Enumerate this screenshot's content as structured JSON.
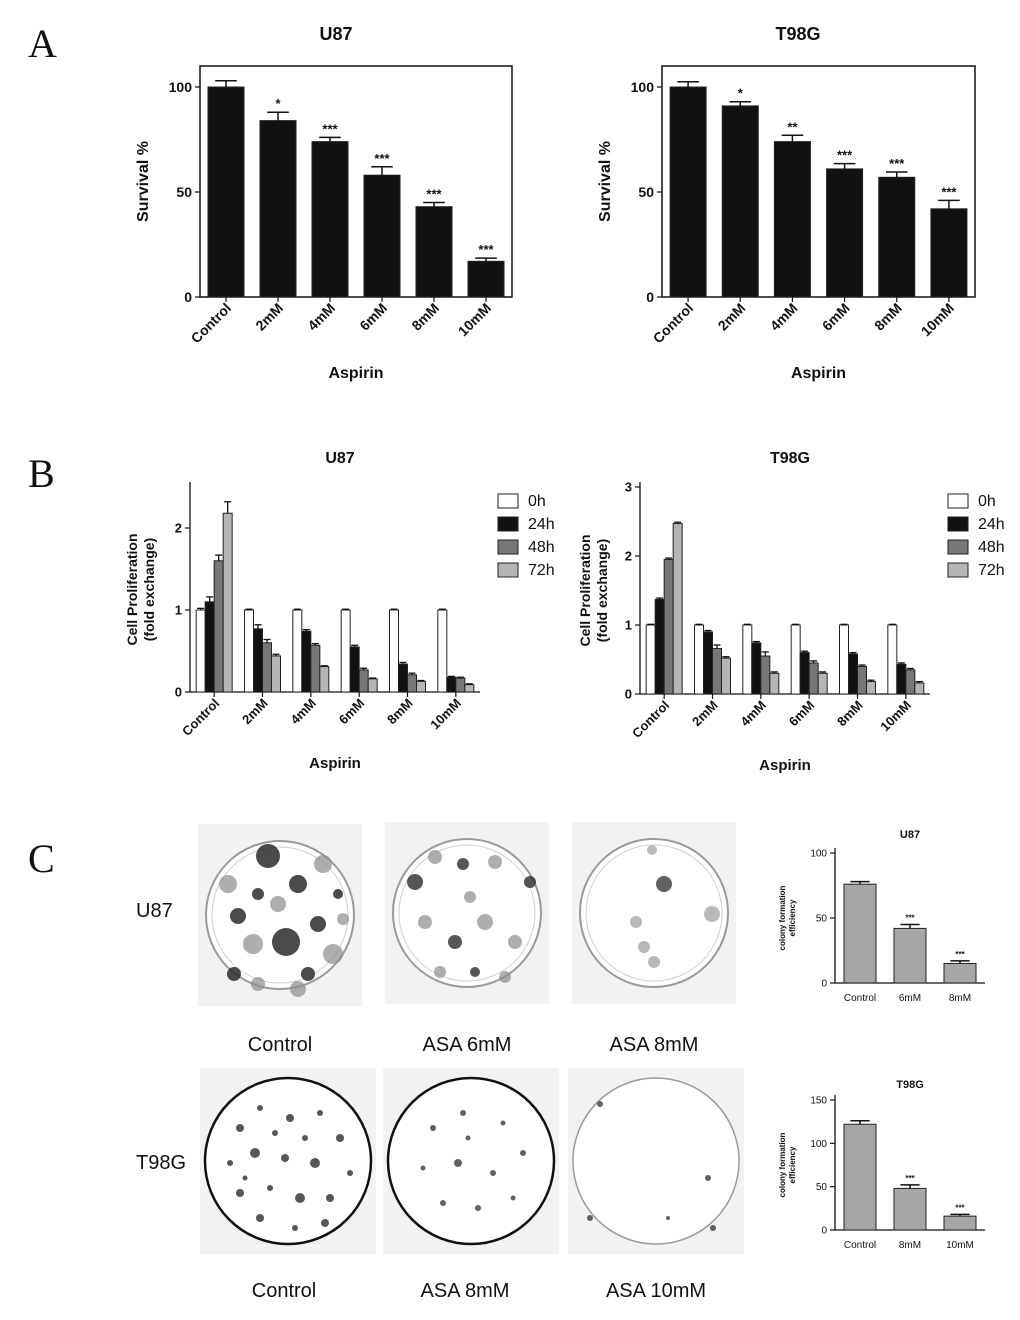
{
  "panels": {
    "a": "A",
    "b": "B",
    "c": "C"
  },
  "colors": {
    "bar_dark": "#111111",
    "bar_white": "#ffffff",
    "bar_mid": "#777777",
    "bar_light": "#b5b5b5",
    "bar_colony": "#a6a6a6"
  },
  "chart_data": [
    {
      "id": "A-U87",
      "type": "bar",
      "title": "U87",
      "xlabel": "Aspirin",
      "ylabel": "Survival %",
      "categories": [
        "Control",
        "2mM",
        "4mM",
        "6mM",
        "8mM",
        "10mM"
      ],
      "values": [
        100,
        84,
        74,
        58,
        43,
        17
      ],
      "errors": [
        3,
        4,
        2,
        4,
        2,
        1.5
      ],
      "significance": [
        "",
        "*",
        "***",
        "***",
        "***",
        "***"
      ],
      "ylim": [
        0,
        110
      ],
      "yticks": [
        0,
        50,
        100
      ]
    },
    {
      "id": "A-T98G",
      "type": "bar",
      "title": "T98G",
      "xlabel": "Aspirin",
      "ylabel": "Survival %",
      "categories": [
        "Control",
        "2mM",
        "4mM",
        "6mM",
        "8mM",
        "10mM"
      ],
      "values": [
        100,
        91,
        74,
        61,
        57,
        42
      ],
      "errors": [
        2.5,
        2,
        3,
        2.5,
        2.5,
        4
      ],
      "significance": [
        "",
        "*",
        "**",
        "***",
        "***",
        "***"
      ],
      "ylim": [
        0,
        110
      ],
      "yticks": [
        0,
        50,
        100
      ]
    },
    {
      "id": "B-U87",
      "type": "bar",
      "title": "U87",
      "xlabel": "Aspirin",
      "ylabel": "Cell Proliferation (fold exchange)",
      "categories": [
        "Control",
        "2mM",
        "4mM",
        "6mM",
        "8mM",
        "10mM"
      ],
      "series": [
        {
          "name": "0h",
          "values": [
            1.0,
            1.0,
            1.0,
            1.0,
            1.0,
            1.0
          ],
          "errors": [
            0.02,
            0.01,
            0.01,
            0.01,
            0.01,
            0.01
          ]
        },
        {
          "name": "24h",
          "values": [
            1.1,
            0.77,
            0.74,
            0.55,
            0.34,
            0.18
          ],
          "errors": [
            0.06,
            0.05,
            0.02,
            0.02,
            0.02,
            0.01
          ]
        },
        {
          "name": "48h",
          "values": [
            1.6,
            0.6,
            0.57,
            0.27,
            0.21,
            0.17
          ],
          "errors": [
            0.07,
            0.04,
            0.02,
            0.02,
            0.02,
            0.01
          ]
        },
        {
          "name": "72h",
          "values": [
            2.18,
            0.44,
            0.31,
            0.16,
            0.13,
            0.09
          ],
          "errors": [
            0.14,
            0.02,
            0.01,
            0.01,
            0.01,
            0.01
          ]
        }
      ],
      "ylim": [
        0,
        2.5
      ],
      "yticks": [
        0,
        1,
        2
      ],
      "legend": "right"
    },
    {
      "id": "B-T98G",
      "type": "bar",
      "title": "T98G",
      "xlabel": "Aspirin",
      "ylabel": "Cell Proliferation (fold exchange)",
      "categories": [
        "Control",
        "2mM",
        "4mM",
        "6mM",
        "8mM",
        "10mM"
      ],
      "series": [
        {
          "name": "0h",
          "values": [
            1.0,
            1.0,
            1.0,
            1.0,
            1.0,
            1.0
          ],
          "errors": [
            0.01,
            0.01,
            0.01,
            0.01,
            0.01,
            0.01
          ]
        },
        {
          "name": "24h",
          "values": [
            1.37,
            0.9,
            0.74,
            0.6,
            0.58,
            0.43
          ],
          "errors": [
            0.02,
            0.02,
            0.02,
            0.02,
            0.02,
            0.02
          ]
        },
        {
          "name": "48h",
          "values": [
            1.95,
            0.66,
            0.55,
            0.45,
            0.4,
            0.35
          ],
          "errors": [
            0.02,
            0.05,
            0.06,
            0.03,
            0.02,
            0.02
          ]
        },
        {
          "name": "72h",
          "values": [
            2.47,
            0.52,
            0.3,
            0.3,
            0.18,
            0.16
          ],
          "errors": [
            0.02,
            0.02,
            0.02,
            0.02,
            0.02,
            0.02
          ]
        }
      ],
      "ylim": [
        0,
        3
      ],
      "yticks": [
        0,
        1,
        2,
        3
      ],
      "legend": "right"
    },
    {
      "id": "C-U87",
      "type": "bar",
      "title": "U87",
      "xlabel": "",
      "ylabel": "colony formation efficiency",
      "categories": [
        "Control",
        "6mM",
        "8mM"
      ],
      "values": [
        76,
        42,
        15
      ],
      "errors": [
        2,
        3,
        2
      ],
      "significance": [
        "",
        "***",
        "***"
      ],
      "ylim": [
        0,
        100
      ],
      "yticks": [
        0,
        50,
        100
      ]
    },
    {
      "id": "C-T98G",
      "type": "bar",
      "title": "T98G",
      "xlabel": "",
      "ylabel": "colony formation efficiency",
      "categories": [
        "Control",
        "8mM",
        "10mM"
      ],
      "values": [
        122,
        48,
        16
      ],
      "errors": [
        4,
        4,
        2
      ],
      "significance": [
        "",
        "***",
        "***"
      ],
      "ylim": [
        0,
        150
      ],
      "yticks": [
        0,
        50,
        100,
        150
      ]
    }
  ],
  "colony_photos": {
    "rows": [
      {
        "cell_line": "U87",
        "captions": [
          "Control",
          "ASA 6mM",
          "ASA 8mM"
        ]
      },
      {
        "cell_line": "T98G",
        "captions": [
          "Control",
          "ASA 8mM",
          "ASA 10mM"
        ]
      }
    ]
  }
}
